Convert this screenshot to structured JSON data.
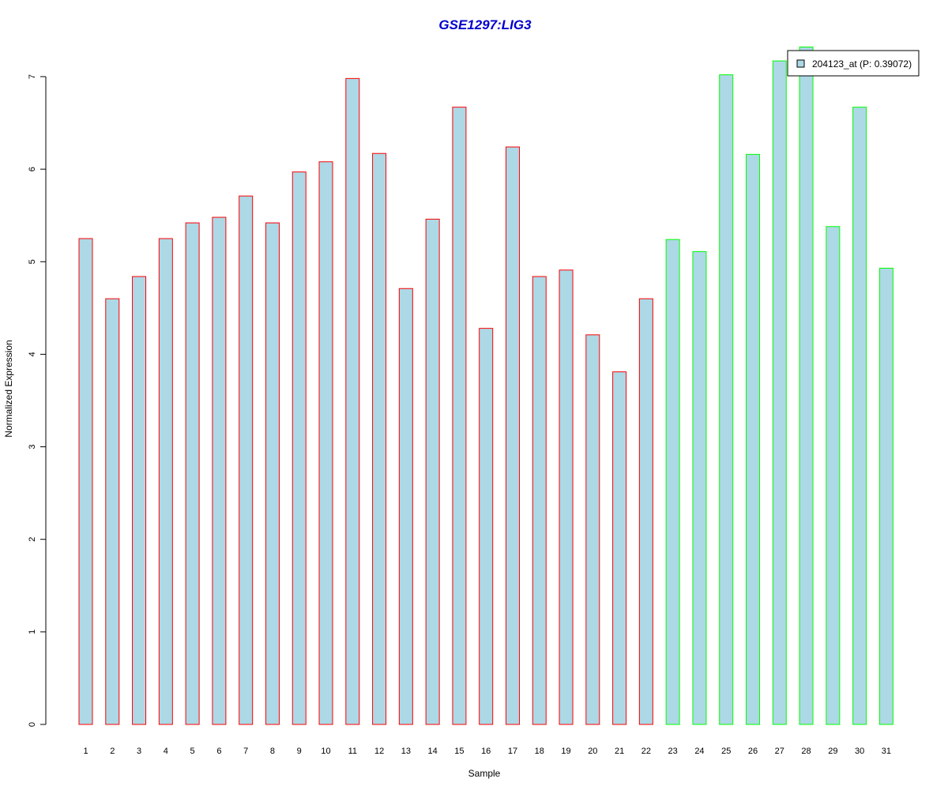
{
  "chart_data": {
    "type": "bar",
    "title": "GSE1297:LIG3",
    "xlabel": "Sample",
    "ylabel": "Normalized Expression",
    "ylim": [
      0,
      7
    ],
    "yticks": [
      "0",
      "1",
      "2",
      "3",
      "4",
      "5",
      "6",
      "7"
    ],
    "categories": [
      "1",
      "2",
      "3",
      "4",
      "5",
      "6",
      "7",
      "8",
      "9",
      "10",
      "11",
      "12",
      "13",
      "14",
      "15",
      "16",
      "17",
      "18",
      "19",
      "20",
      "21",
      "22",
      "23",
      "24",
      "25",
      "26",
      "27",
      "28",
      "29",
      "30",
      "31"
    ],
    "values": [
      5.25,
      4.6,
      4.84,
      5.25,
      5.42,
      5.48,
      5.71,
      5.42,
      5.97,
      6.08,
      6.98,
      6.17,
      4.71,
      5.46,
      6.67,
      4.28,
      6.24,
      4.84,
      4.91,
      4.21,
      3.81,
      4.6,
      5.24,
      5.11,
      7.02,
      6.16,
      7.17,
      7.32,
      5.38,
      6.67,
      4.93
    ],
    "groups": [
      1,
      1,
      1,
      1,
      1,
      1,
      1,
      1,
      1,
      1,
      1,
      1,
      1,
      1,
      1,
      1,
      1,
      1,
      1,
      1,
      1,
      1,
      2,
      2,
      2,
      2,
      2,
      2,
      2,
      2,
      2
    ],
    "legend": {
      "label": "204123_at (P: 0.39072)",
      "position": "top-right"
    },
    "grid": false
  },
  "colors": {
    "bar_fill": "#add8e6",
    "group1_border": "#ff0000",
    "group2_border": "#00ff00",
    "title": "#0000cd",
    "axis": "#000000"
  }
}
